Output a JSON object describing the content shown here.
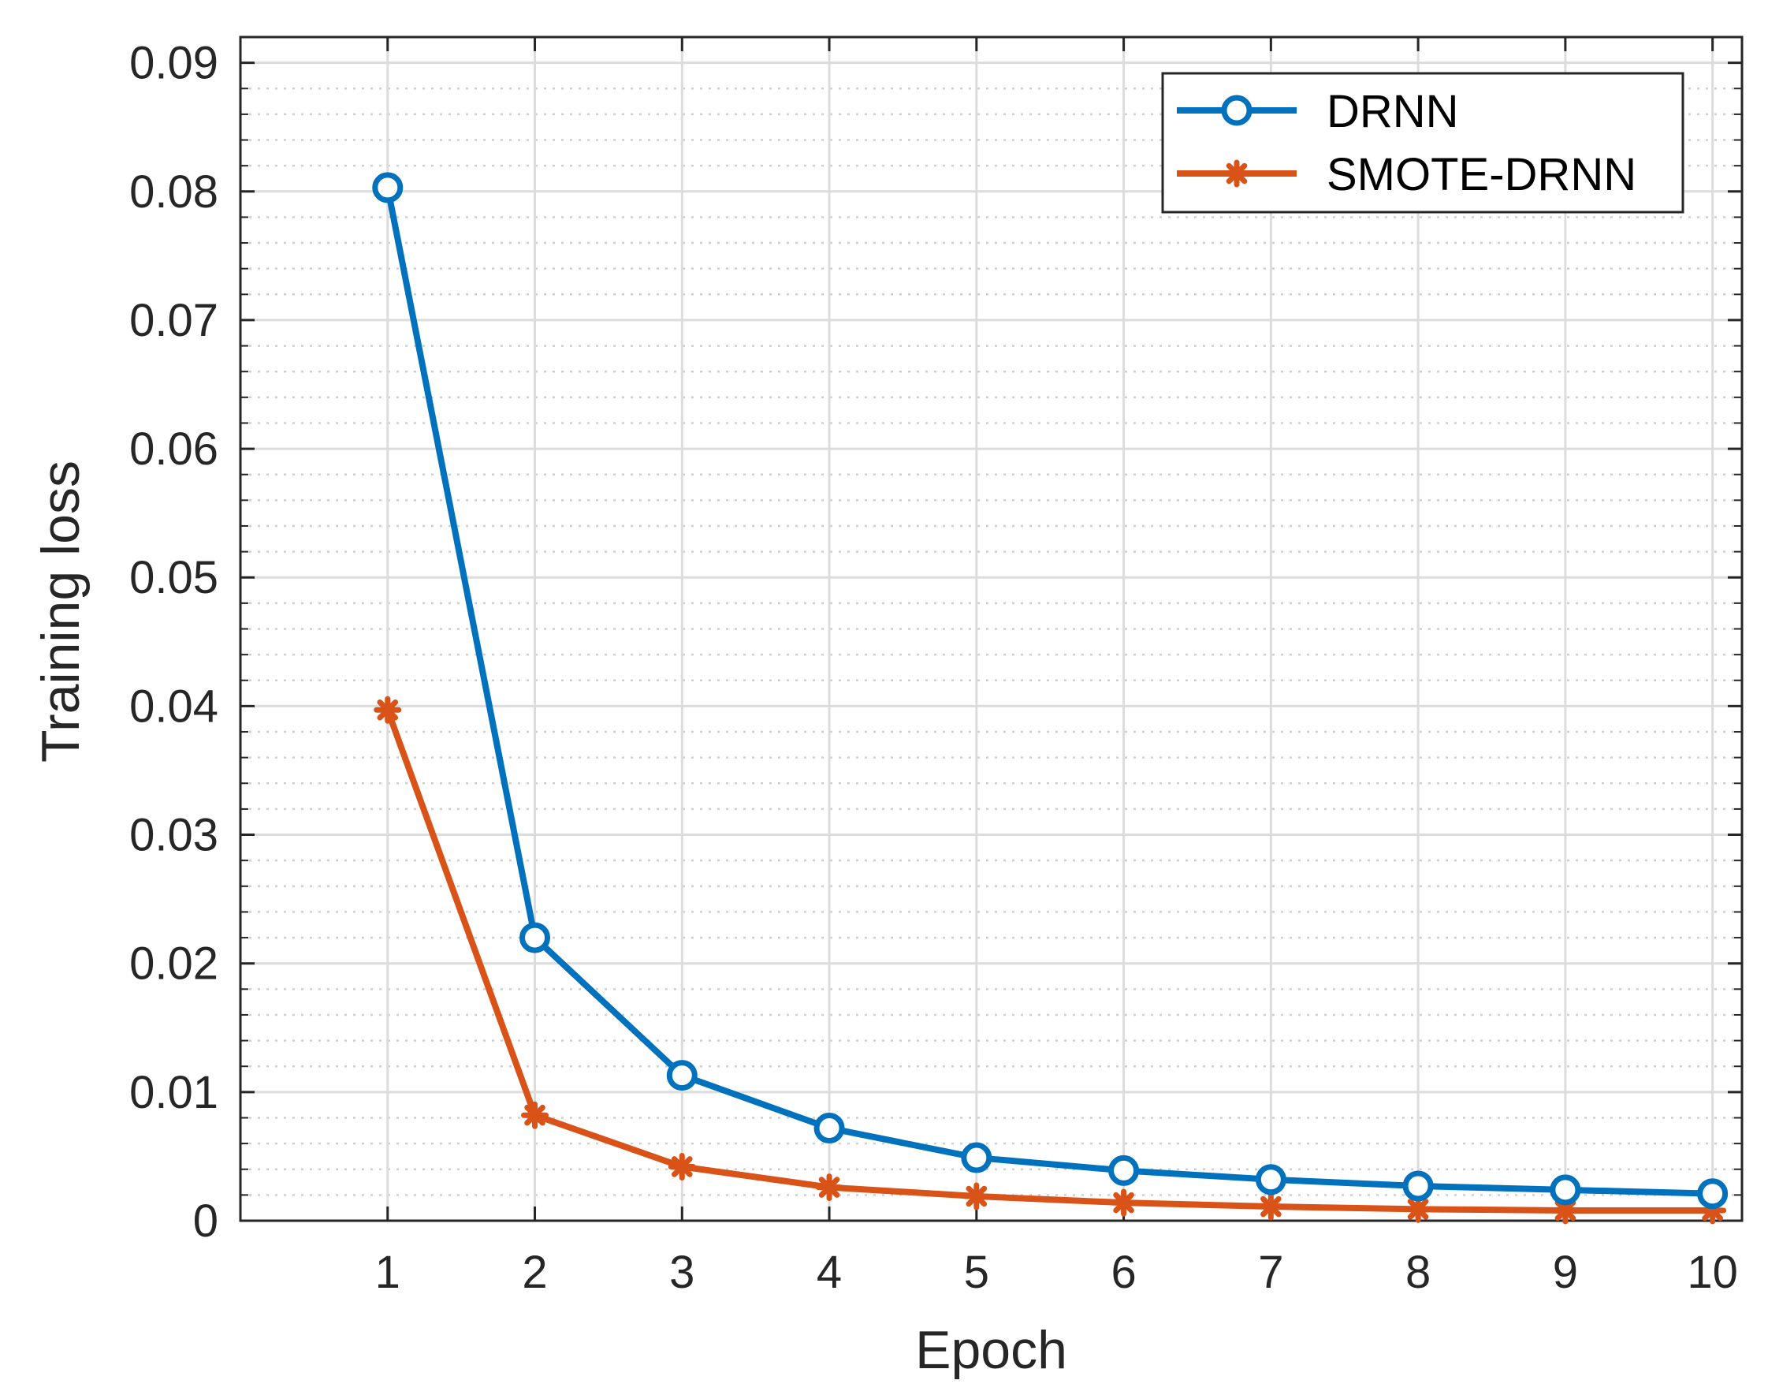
{
  "chart_data": {
    "type": "line",
    "title": "",
    "xlabel": "Epoch",
    "ylabel": "Training loss",
    "x": [
      1,
      2,
      3,
      4,
      5,
      6,
      7,
      8,
      9,
      10
    ],
    "xlim": [
      0,
      10.2
    ],
    "ylim": [
      0,
      0.092
    ],
    "x_ticks": [
      1,
      2,
      3,
      4,
      5,
      6,
      7,
      8,
      9,
      10
    ],
    "x_tick_labels": [
      "1",
      "2",
      "3",
      "4",
      "5",
      "6",
      "7",
      "8",
      "9",
      "10"
    ],
    "y_ticks": [
      0,
      0.01,
      0.02,
      0.03,
      0.04,
      0.05,
      0.06,
      0.07,
      0.08,
      0.09
    ],
    "y_tick_labels": [
      "0",
      "0.01",
      "0.02",
      "0.03",
      "0.04",
      "0.05",
      "0.06",
      "0.07",
      "0.08",
      "0.09"
    ],
    "y_minor_step": 0.002,
    "grid": true,
    "minor_grid": true,
    "legend_position": "top-right",
    "series": [
      {
        "name": "DRNN",
        "color": "#0072BD",
        "marker": "circle",
        "values": [
          0.0803,
          0.022,
          0.0113,
          0.0072,
          0.0049,
          0.0039,
          0.0032,
          0.0027,
          0.0024,
          0.0021
        ]
      },
      {
        "name": "SMOTE-DRNN",
        "color": "#D95319",
        "marker": "asterisk",
        "values": [
          0.0397,
          0.0082,
          0.0042,
          0.0026,
          0.0019,
          0.0014,
          0.0011,
          0.0009,
          0.0008,
          0.0008
        ]
      }
    ]
  }
}
